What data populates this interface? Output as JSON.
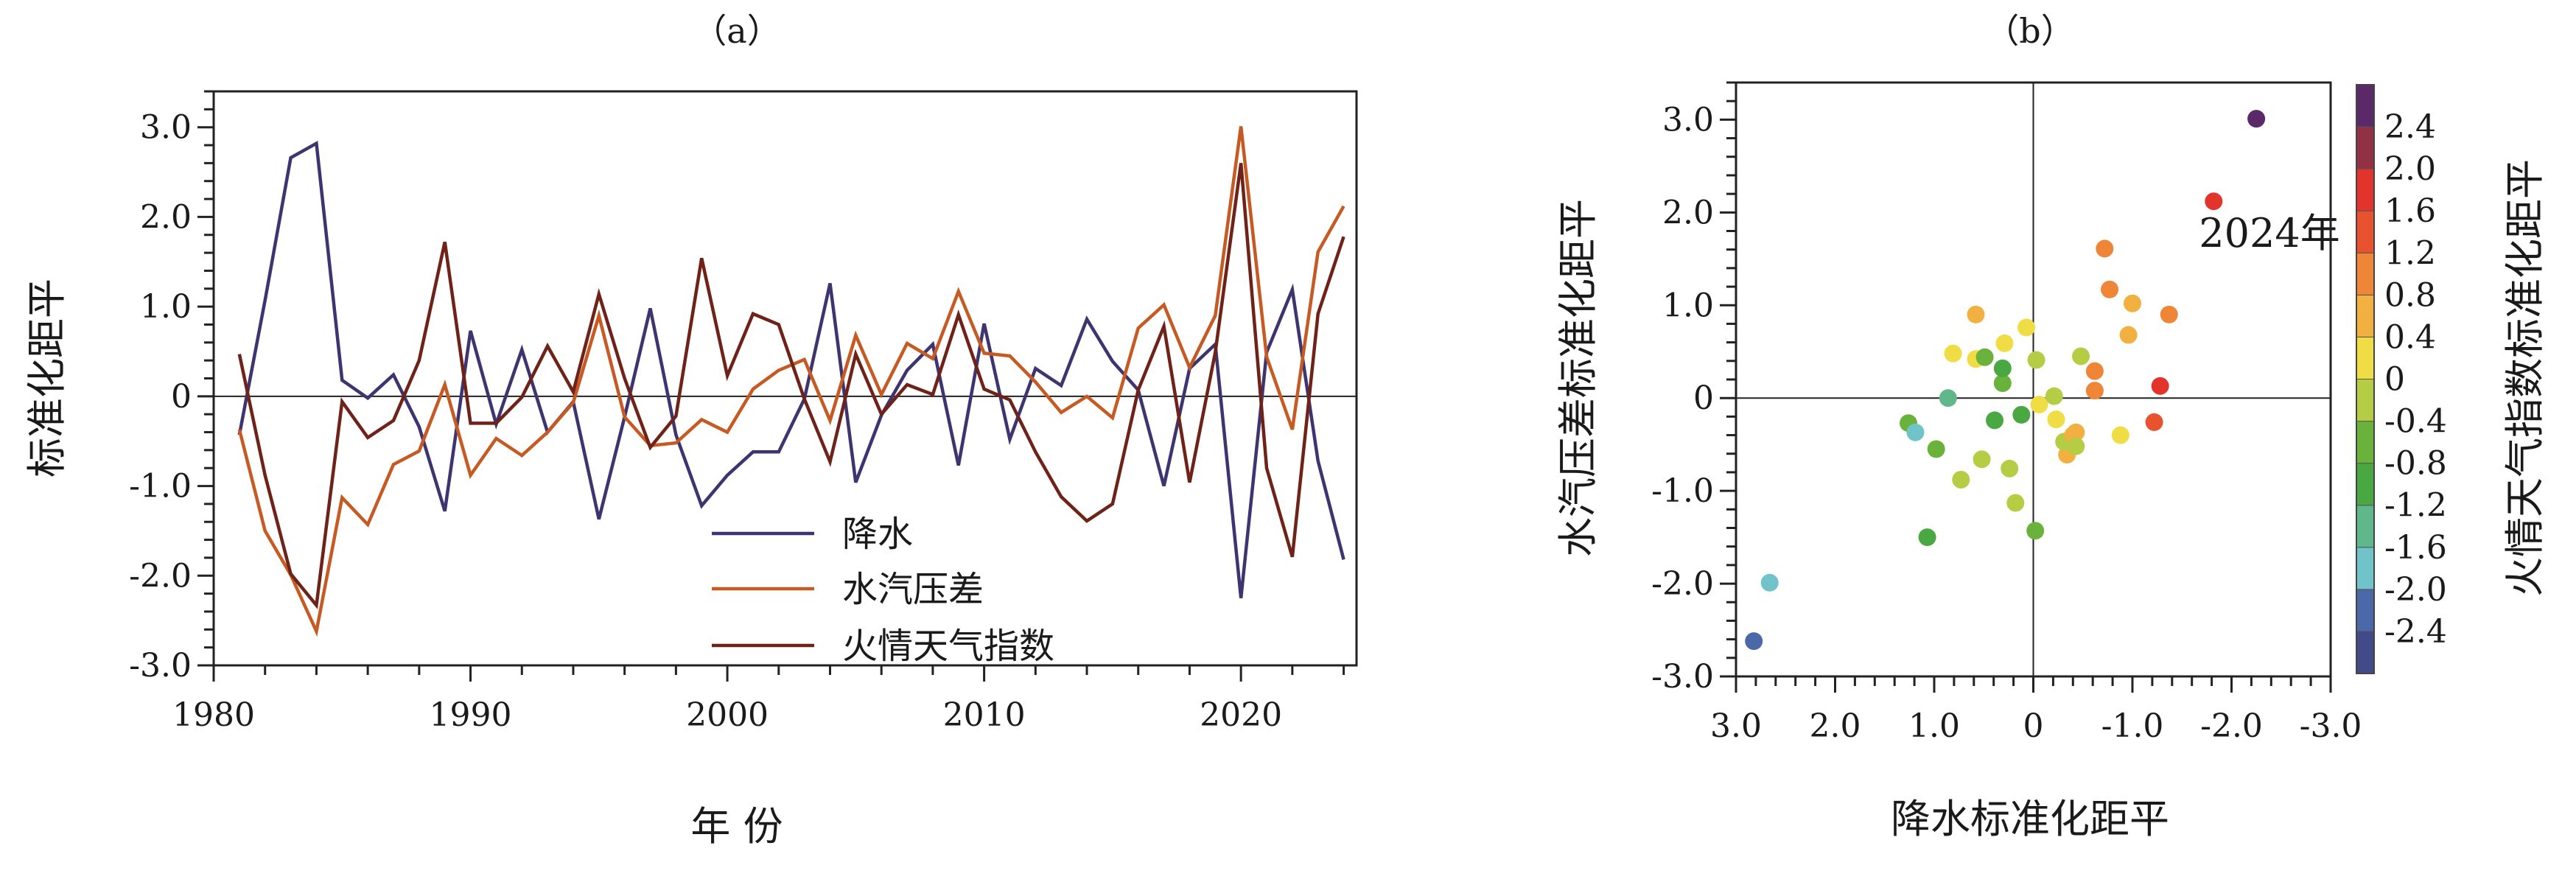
{
  "panel_a": {
    "title": "（a）",
    "xlabel": "年 份",
    "ylabel": "标准化距平"
  },
  "panel_b": {
    "title": "（b）",
    "xlabel": "降水标准化距平",
    "ylabel": "水汽压差标准化距平",
    "colorbar_label": "火情天气指数标准化距平",
    "annotation": "2024年"
  },
  "chart_data": [
    {
      "type": "line",
      "title": "（a）",
      "xlabel": "年 份",
      "ylabel": "标准化距平",
      "xlim": [
        1980,
        2024.5
      ],
      "ylim": [
        -3.0,
        3.4
      ],
      "xticks": [
        "1980",
        "1990",
        "2000",
        "2010",
        "2020"
      ],
      "yticks": [
        "3.0",
        "2.0",
        "1.0",
        "0",
        "-1.0",
        "-2.0",
        "-3.0"
      ],
      "legend_position": "bottom-center",
      "x": [
        1981,
        1982,
        1983,
        1984,
        1985,
        1986,
        1987,
        1988,
        1989,
        1990,
        1991,
        1992,
        1993,
        1994,
        1995,
        1996,
        1997,
        1998,
        1999,
        2000,
        2001,
        2002,
        2003,
        2004,
        2005,
        2006,
        2007,
        2008,
        2009,
        2010,
        2011,
        2012,
        2013,
        2014,
        2015,
        2016,
        2017,
        2018,
        2019,
        2020,
        2021,
        2022,
        2023,
        2024
      ],
      "series": [
        {
          "name": "降水",
          "color": "#3d3470",
          "values": [
            -0.43,
            1.07,
            2.66,
            2.82,
            0.18,
            -0.02,
            0.24,
            -0.34,
            -1.28,
            0.73,
            -0.31,
            0.52,
            -0.4,
            -0.06,
            -1.37,
            -0.23,
            0.98,
            -0.43,
            -1.22,
            -0.88,
            -0.62,
            -0.62,
            -0.03,
            1.26,
            -0.96,
            -0.21,
            0.29,
            0.58,
            -0.77,
            0.81,
            -0.48,
            0.31,
            0.12,
            0.86,
            0.39,
            0.07,
            -1.0,
            0.31,
            0.58,
            -2.25,
            0.49,
            1.19,
            -0.72,
            -1.82
          ]
        },
        {
          "name": "水汽压差",
          "color": "#c65a22",
          "values": [
            -0.37,
            -1.5,
            -1.99,
            -2.62,
            -1.13,
            -1.43,
            -0.76,
            -0.61,
            0.13,
            -0.88,
            -0.47,
            -0.66,
            -0.4,
            -0.07,
            0.9,
            -0.23,
            -0.55,
            -0.52,
            -0.26,
            -0.4,
            0.08,
            0.29,
            0.41,
            -0.27,
            0.68,
            0.02,
            0.59,
            0.42,
            1.17,
            0.48,
            0.45,
            0.16,
            -0.18,
            0.0,
            -0.24,
            0.76,
            1.02,
            0.32,
            0.9,
            3.01,
            0.44,
            -0.37,
            1.61,
            2.12
          ]
        },
        {
          "name": "火情天气指数",
          "color": "#6e2218",
          "values": [
            0.47,
            -0.88,
            -1.98,
            -2.33,
            -0.06,
            -0.46,
            -0.27,
            0.4,
            1.72,
            -0.3,
            -0.3,
            -0.01,
            0.56,
            0.05,
            1.14,
            0.2,
            -0.57,
            -0.22,
            1.54,
            0.23,
            0.92,
            0.8,
            -0.03,
            -0.73,
            0.47,
            -0.2,
            0.13,
            0.02,
            0.91,
            0.08,
            -0.04,
            -0.62,
            -1.12,
            -1.39,
            -1.2,
            0.07,
            0.78,
            -0.96,
            0.49,
            2.6,
            -0.8,
            -1.79,
            0.92,
            1.78
          ]
        }
      ]
    },
    {
      "type": "scatter",
      "title": "（b）",
      "xlabel": "降水标准化距平",
      "ylabel": "水汽压差标准化距平",
      "x_from_series": "降水",
      "y_from_series": "水汽压差",
      "color_from_series": "火情天气指数",
      "xlim": [
        3.0,
        -3.0
      ],
      "ylim": [
        -3.0,
        3.4
      ],
      "xticks": [
        "3.0",
        "2.0",
        "1.0",
        "0",
        "-1.0",
        "-2.0",
        "-3.0"
      ],
      "yticks": [
        "3.0",
        "2.0",
        "1.0",
        "0",
        "-1.0",
        "-2.0",
        "-3.0"
      ],
      "annotation": {
        "text": "2024年",
        "year": 2024
      },
      "colorbar": {
        "label": "火情天气指数标准化距平",
        "ticks": [
          "2.4",
          "2.0",
          "1.6",
          "1.2",
          "0.8",
          "0.4",
          "0",
          "-0.4",
          "-0.8",
          "-1.2",
          "-1.6",
          "-2.0",
          "-2.4"
        ],
        "boundaries": [
          -2.4,
          -2.0,
          -1.6,
          -1.2,
          -0.8,
          -0.4,
          0,
          0.4,
          0.8,
          1.2,
          1.6,
          2.0,
          2.4
        ],
        "colors": [
          "#434a8a",
          "#4b68a8",
          "#6fc3c9",
          "#5fb78a",
          "#4aa843",
          "#6ab23c",
          "#b5cd45",
          "#f0dd45",
          "#f1b03f",
          "#ef8536",
          "#e9522e",
          "#e3342b",
          "#923146",
          "#5b2868"
        ]
      }
    }
  ]
}
